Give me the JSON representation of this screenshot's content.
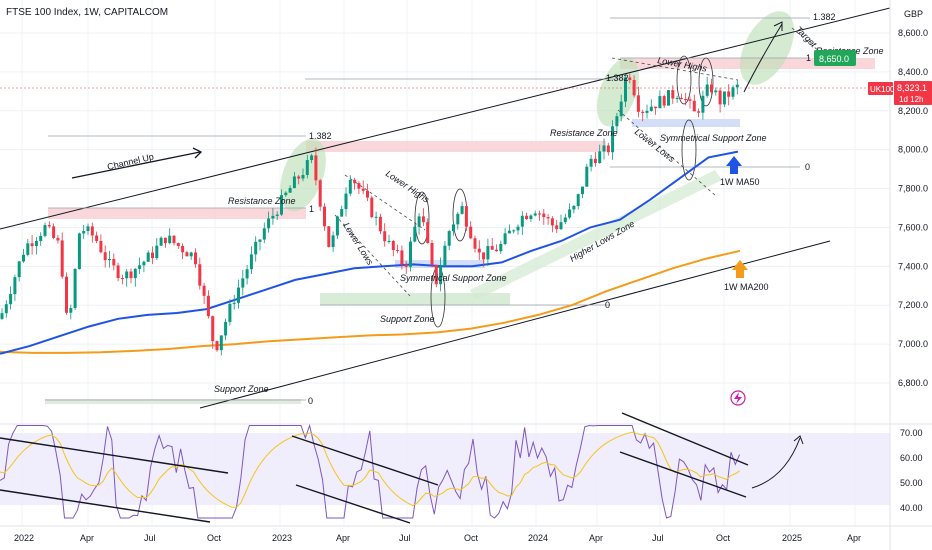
{
  "header": {
    "title": "FTSE 100 Index, 1W, CAPITALCOM",
    "currency": "GBP"
  },
  "badges": {
    "symbol": "UK100",
    "last_price": "8,323.1",
    "countdown": "1d 12h",
    "target_price": "8,650.0"
  },
  "chart_data": {
    "type": "candlestick",
    "price_axis": {
      "ticks": [
        "8,600.0",
        "8,400.0",
        "8,200.0",
        "8,000.0",
        "7,800.0",
        "7,600.0",
        "7,400.0",
        "7,200.0",
        "7,000.0",
        "6,800.0"
      ],
      "tick_values": [
        8600,
        8400,
        8200,
        8000,
        7800,
        7600,
        7400,
        7200,
        7000,
        6800
      ],
      "ylim": [
        6690,
        8730
      ]
    },
    "rsi_axis": {
      "ticks": [
        "70.00",
        "60.00",
        "50.00",
        "40.00"
      ],
      "tick_values": [
        70,
        60,
        50,
        40
      ]
    },
    "time_axis": {
      "labels": [
        "2022",
        "Apr",
        "Jul",
        "Oct",
        "2023",
        "Apr",
        "Jul",
        "Oct",
        "2024",
        "Apr",
        "Jul",
        "Oct",
        "2025",
        "Apr"
      ]
    },
    "series": [
      {
        "name": "1W MA50",
        "color": "#1e53e5",
        "values": [
          6950,
          6990,
          7040,
          7090,
          7130,
          7150,
          7160,
          7180,
          7230,
          7280,
          7330,
          7360,
          7390,
          7400,
          7410,
          7400,
          7400,
          7420,
          7480,
          7530,
          7600,
          7640,
          7740,
          7850,
          7960,
          7990
        ]
      },
      {
        "name": "1W MA200",
        "color": "#f59b1a",
        "values": [
          6960,
          6955,
          6955,
          6958,
          6965,
          6975,
          6990,
          7000,
          7015,
          7025,
          7035,
          7045,
          7050,
          7060,
          7080,
          7110,
          7150,
          7200,
          7270,
          7330,
          7390,
          7440,
          7480
        ]
      }
    ],
    "levels": [
      "1.382",
      "1",
      "0"
    ],
    "annotations": [
      "Channel Up",
      "Resistance Zone",
      "Support Zone",
      "Lower Highs",
      "Lower Lows",
      "Symmetrical Support Zone",
      "Support Zone",
      "Resistance Zone",
      "Higher Lows Zone",
      "Lower Highs",
      "Lower Lows",
      "Symmetrical Support Zone",
      "1W MA50",
      "1W MA200",
      "Target",
      "Resistance Zone"
    ],
    "rsi": {
      "overbought": 70,
      "oversold": 30
    }
  }
}
